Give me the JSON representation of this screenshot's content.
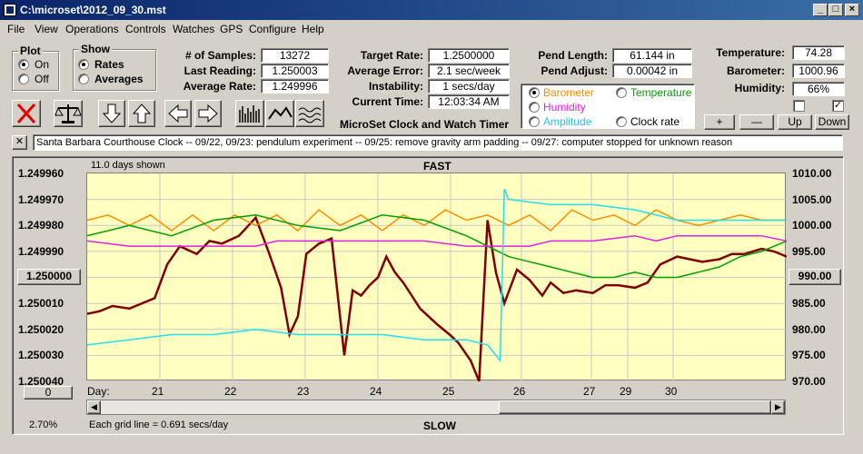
{
  "window": {
    "title": "C:\\microset\\2012_09_30.mst"
  },
  "menu": [
    "File",
    "View",
    "Operations",
    "Controls",
    "Watches",
    "GPS",
    "Configure",
    "Help"
  ],
  "plot_group": {
    "title": "Plot",
    "on": "On",
    "off": "Off",
    "selected": "On"
  },
  "show_group": {
    "title": "Show",
    "rates": "Rates",
    "averages": "Averages",
    "selected": "Rates"
  },
  "stats": {
    "samples_label": "# of Samples:",
    "samples": "13272",
    "last_label": "Last Reading:",
    "last": "1.250003",
    "avg_label": "Average Rate:",
    "avg": "1.249996"
  },
  "target": {
    "target_label": "Target Rate:",
    "target": "1.2500000",
    "avg_err_label": "Average Error:",
    "avg_err": "2.1 sec/week",
    "instab_label": "Instability:",
    "instab": "1 secs/day",
    "time_label": "Current Time:",
    "time": "12:03:34 AM"
  },
  "pend": {
    "len_label": "Pend Length:",
    "len": "61.144 in",
    "adj_label": "Pend Adjust:",
    "adj": "0.00042 in"
  },
  "env": {
    "temp_label": "Temperature:",
    "temp": "74.28",
    "baro_label": "Barometer:",
    "baro": "1000.96",
    "hum_label": "Humidity:",
    "hum": "66%"
  },
  "sensor_select": {
    "barometer": "Barometer",
    "temperature": "Temperature",
    "humidity": "Humidity",
    "amplitude": "Amplitude",
    "clock_rate": "Clock rate",
    "selected": "Barometer"
  },
  "scale_buttons": {
    "plus": "+",
    "minus": "—",
    "up": "Up",
    "down": "Down"
  },
  "app_title": "MicroSet Clock and Watch Timer",
  "note": "Santa Barbara Courthouse Clock  -- 09/22, 09/23: pendulum experiment  -- 09/25: remove gravity arm padding  -- 09/27: computer stopped for unknown reason",
  "note_close": "✕",
  "colors": {
    "rate": "#800000",
    "barometer": "#ff8c00",
    "temperature": "#00a000",
    "humidity": "#e020e0",
    "amplitude": "#20e0f0",
    "plot_bg": "#ffffc0"
  },
  "chart": {
    "days_shown": "11.0 days shown",
    "top_label": "FAST",
    "bottom_label": "SLOW",
    "grid_note": "Each grid line = 0.691 secs/day",
    "percent": "2.70%",
    "left_button": "1.250000",
    "right_button": "990.00",
    "bottom_left_button": "0",
    "day_label": "Day:"
  },
  "chart_data": {
    "type": "line",
    "left_axis": {
      "ticks": [
        "1.249960",
        "1.249970",
        "1.249980",
        "1.249990",
        "1.250000",
        "1.250010",
        "1.250020",
        "1.250030",
        "1.250040"
      ],
      "ylim": [
        1.25004,
        1.24996
      ]
    },
    "right_axis": {
      "ticks": [
        "1010.00",
        "1005.00",
        "1000.00",
        "995.00",
        "990.00",
        "985.00",
        "980.00",
        "975.00",
        "970.00"
      ],
      "ylim": [
        970,
        1010
      ]
    },
    "x_days": [
      "21",
      "22",
      "23",
      "24",
      "25",
      "26",
      "27",
      "29",
      "30"
    ],
    "series": [
      {
        "key": "rate",
        "axis": "left",
        "points": [
          [
            0,
            1.249986
          ],
          [
            0.03,
            1.249987
          ],
          [
            0.06,
            1.249989
          ],
          [
            0.1,
            1.249988
          ],
          [
            0.13,
            1.24999
          ],
          [
            0.16,
            1.249992
          ],
          [
            0.19,
            1.250005
          ],
          [
            0.22,
            1.250012
          ],
          [
            0.26,
            1.250009
          ],
          [
            0.29,
            1.250014
          ],
          [
            0.32,
            1.250013
          ],
          [
            0.36,
            1.250016
          ],
          [
            0.4,
            1.250023
          ],
          [
            0.43,
            1.25001
          ],
          [
            0.46,
            1.249996
          ],
          [
            0.48,
            1.249978
          ],
          [
            0.5,
            1.249985
          ],
          [
            0.52,
            1.250009
          ],
          [
            0.55,
            1.250013
          ],
          [
            0.58,
            1.250015
          ],
          [
            0.61,
            1.24997
          ],
          [
            0.63,
            1.249995
          ],
          [
            0.65,
            1.249993
          ],
          [
            0.67,
            1.249997
          ],
          [
            0.69,
            1.25
          ],
          [
            0.71,
            1.250008
          ],
          [
            0.73,
            1.250002
          ],
          [
            0.75,
            1.249998
          ],
          [
            0.77,
            1.249993
          ],
          [
            0.79,
            1.249988
          ],
          [
            0.81,
            1.249985
          ],
          [
            0.83,
            1.249982
          ],
          [
            0.86,
            1.249978
          ],
          [
            0.88,
            1.249975
          ],
          [
            0.91,
            1.249968
          ],
          [
            0.93,
            1.24996
          ],
          [
            0.95,
            1.250022
          ],
          [
            0.97,
            1.250002
          ],
          [
            0.99,
            1.24999
          ],
          [
            1.02,
            1.250003
          ],
          [
            1.05,
            1.249999
          ],
          [
            1.08,
            1.249993
          ],
          [
            1.1,
            1.249998
          ],
          [
            1.13,
            1.249994
          ],
          [
            1.16,
            1.249995
          ],
          [
            1.2,
            1.249994
          ],
          [
            1.23,
            1.249997
          ],
          [
            1.26,
            1.249997
          ],
          [
            1.3,
            1.249996
          ],
          [
            1.33,
            1.249998
          ],
          [
            1.36,
            1.250005
          ],
          [
            1.4,
            1.250008
          ],
          [
            1.43,
            1.250007
          ],
          [
            1.46,
            1.250006
          ],
          [
            1.5,
            1.250007
          ],
          [
            1.53,
            1.250009
          ],
          [
            1.56,
            1.250009
          ],
          [
            1.6,
            1.250011
          ],
          [
            1.63,
            1.25001
          ],
          [
            1.66,
            1.250008
          ]
        ]
      },
      {
        "key": "barometer",
        "axis": "right",
        "points": [
          [
            0,
            1001
          ],
          [
            0.05,
            1002
          ],
          [
            0.1,
            1000
          ],
          [
            0.15,
            1002
          ],
          [
            0.2,
            999
          ],
          [
            0.25,
            1002
          ],
          [
            0.3,
            999
          ],
          [
            0.35,
            1002
          ],
          [
            0.4,
            1000
          ],
          [
            0.45,
            1002
          ],
          [
            0.5,
            999
          ],
          [
            0.55,
            1003
          ],
          [
            0.6,
            1000
          ],
          [
            0.65,
            1002
          ],
          [
            0.7,
            999
          ],
          [
            0.75,
            1002
          ],
          [
            0.8,
            1000
          ],
          [
            0.85,
            1003
          ],
          [
            0.9,
            1001
          ],
          [
            0.95,
            1002
          ],
          [
            1.0,
            1000
          ],
          [
            1.05,
            1002
          ],
          [
            1.1,
            999
          ],
          [
            1.15,
            1003
          ],
          [
            1.2,
            1001
          ],
          [
            1.25,
            1002
          ],
          [
            1.3,
            1000
          ],
          [
            1.35,
            1003
          ],
          [
            1.4,
            1001
          ],
          [
            1.45,
            1000
          ],
          [
            1.5,
            1001
          ],
          [
            1.55,
            1002
          ],
          [
            1.6,
            1001
          ],
          [
            1.66,
            1001
          ]
        ]
      },
      {
        "key": "temperature",
        "axis": "right",
        "points": [
          [
            0,
            998
          ],
          [
            0.1,
            1000
          ],
          [
            0.2,
            998
          ],
          [
            0.3,
            1001
          ],
          [
            0.4,
            1002
          ],
          [
            0.5,
            1000
          ],
          [
            0.6,
            999
          ],
          [
            0.7,
            1002
          ],
          [
            0.8,
            1001
          ],
          [
            0.9,
            998
          ],
          [
            0.95,
            996
          ],
          [
            1.0,
            994
          ],
          [
            1.05,
            993
          ],
          [
            1.1,
            992
          ],
          [
            1.15,
            991
          ],
          [
            1.2,
            990
          ],
          [
            1.25,
            990
          ],
          [
            1.3,
            991
          ],
          [
            1.35,
            990
          ],
          [
            1.4,
            990
          ],
          [
            1.45,
            991
          ],
          [
            1.5,
            992
          ],
          [
            1.55,
            994
          ],
          [
            1.6,
            995
          ],
          [
            1.66,
            997
          ]
        ]
      },
      {
        "key": "humidity",
        "axis": "right",
        "points": [
          [
            0,
            997
          ],
          [
            0.1,
            996
          ],
          [
            0.2,
            996
          ],
          [
            0.3,
            996
          ],
          [
            0.4,
            996
          ],
          [
            0.45,
            997
          ],
          [
            0.5,
            997
          ],
          [
            0.6,
            997
          ],
          [
            0.7,
            997
          ],
          [
            0.8,
            997
          ],
          [
            0.9,
            996
          ],
          [
            1.0,
            996
          ],
          [
            1.05,
            996
          ],
          [
            1.1,
            997
          ],
          [
            1.2,
            997
          ],
          [
            1.3,
            998
          ],
          [
            1.35,
            997
          ],
          [
            1.4,
            998
          ],
          [
            1.5,
            998
          ],
          [
            1.6,
            998
          ],
          [
            1.66,
            997
          ]
        ]
      },
      {
        "key": "amplitude",
        "axis": "right",
        "points": [
          [
            0,
            977
          ],
          [
            0.1,
            978
          ],
          [
            0.2,
            979
          ],
          [
            0.3,
            979
          ],
          [
            0.4,
            980
          ],
          [
            0.5,
            979
          ],
          [
            0.6,
            979
          ],
          [
            0.7,
            979
          ],
          [
            0.8,
            978
          ],
          [
            0.9,
            978
          ],
          [
            0.95,
            977
          ],
          [
            0.98,
            974
          ],
          [
            0.99,
            1007
          ],
          [
            1.0,
            1005
          ],
          [
            1.1,
            1004
          ],
          [
            1.2,
            1004
          ],
          [
            1.3,
            1003
          ],
          [
            1.4,
            1001
          ],
          [
            1.5,
            1001
          ],
          [
            1.6,
            1001
          ],
          [
            1.66,
            1001
          ]
        ]
      }
    ]
  }
}
